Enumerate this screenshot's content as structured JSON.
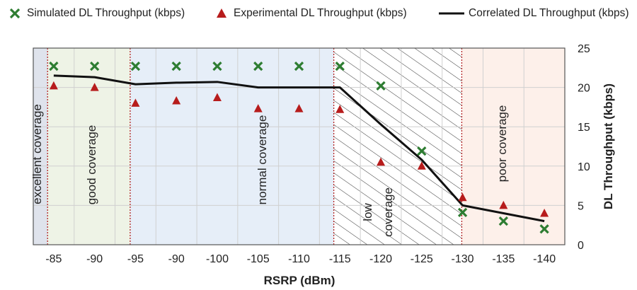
{
  "legend": {
    "simulated": "Simulated DL Throughput (kbps)",
    "experimental": "Experimental DL Throughput (kbps)",
    "correlated": "Correlated DL Throughput (kbps)"
  },
  "colors": {
    "simulated": "#2e7d32",
    "experimental": "#b71c1c",
    "correlated": "#111111",
    "boundary": "#b22222",
    "excellent_bg": "#dfe3ec",
    "good_bg": "#eef3e6",
    "normal_bg": "#e6eef8",
    "poor_bg": "#fdf0ea"
  },
  "chart_data": {
    "type": "line",
    "xlabel": "RSRP (dBm)",
    "ylabel": "DL Throughput (kbps)",
    "y_axis_position": "right",
    "ylim": [
      0,
      25
    ],
    "yticks": [
      0,
      5,
      10,
      15,
      20,
      25
    ],
    "categories": [
      "-85",
      "-90",
      "-95",
      "-90",
      "-100",
      "-105",
      "-110",
      "-115",
      "-120",
      "-125",
      "-130",
      "-135",
      "-140"
    ],
    "series": [
      {
        "name": "Simulated DL Throughput (kbps)",
        "kind": "scatter",
        "marker": "x",
        "values": [
          22.7,
          22.7,
          22.7,
          22.7,
          22.7,
          22.7,
          22.7,
          22.7,
          20.2,
          11.9,
          4.1,
          3.0,
          2.0
        ]
      },
      {
        "name": "Experimental DL Throughput (kbps)",
        "kind": "scatter",
        "marker": "triangle",
        "values": [
          20.2,
          20.0,
          18.0,
          18.3,
          18.7,
          17.3,
          17.3,
          17.2,
          10.5,
          10.0,
          6.0,
          5.0,
          4.0
        ]
      },
      {
        "name": "Correlated DL Throughput (kbps)",
        "kind": "line",
        "values": [
          21.5,
          21.3,
          20.4,
          20.6,
          20.7,
          20.0,
          20.0,
          20.0,
          15.3,
          10.8,
          5.0,
          4.0,
          3.0
        ]
      }
    ],
    "regions": [
      {
        "label": "excellent coverage",
        "from": -0.5,
        "to": -0.15,
        "fill": "excellent_bg"
      },
      {
        "label": "good coverage",
        "from": -0.15,
        "to": 1.87,
        "fill": "good_bg"
      },
      {
        "label": "normal coverage",
        "from": 1.87,
        "to": 6.85,
        "fill": "normal_bg"
      },
      {
        "label": "low coverage",
        "from": 6.85,
        "to": 9.98,
        "fill": "hatched"
      },
      {
        "label": "poor coverage",
        "from": 9.98,
        "to": 12.5,
        "fill": "poor_bg"
      }
    ],
    "boundaries": [
      -0.15,
      1.87,
      6.85,
      9.98
    ],
    "grid": true,
    "legend_position": "top"
  }
}
